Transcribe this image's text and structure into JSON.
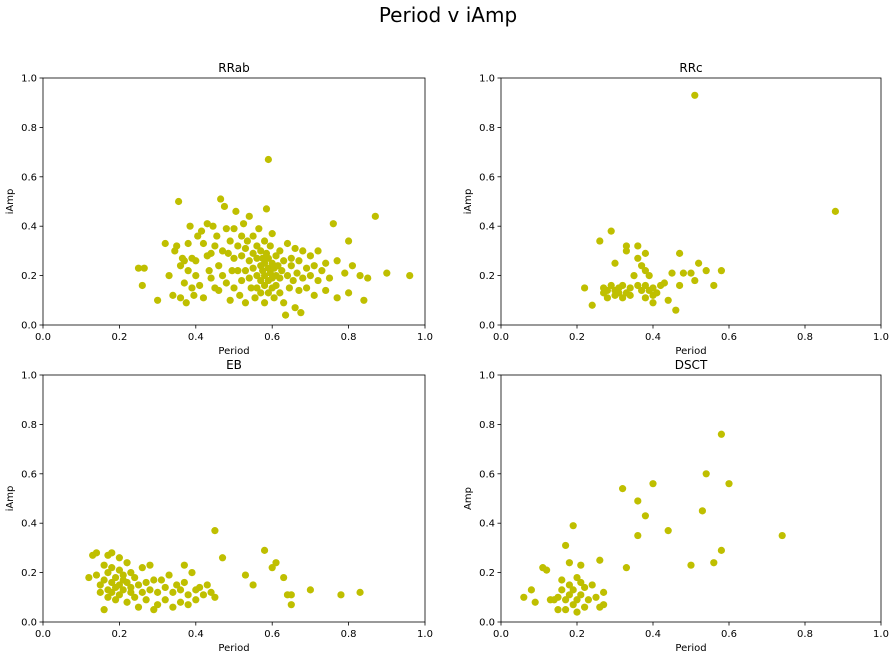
{
  "figure": {
    "suptitle": "Period v iAmp",
    "point_color": "#bfbf00"
  },
  "chart_data": [
    {
      "type": "scatter",
      "title": "RRab",
      "xlabel": "Period",
      "ylabel": "iAmp",
      "xlim": [
        0,
        1
      ],
      "ylim": [
        0,
        1
      ],
      "xticks": [
        "0.0",
        "0.2",
        "0.4",
        "0.6",
        "0.8",
        "1.0"
      ],
      "yticks": [
        "0.0",
        "0.2",
        "0.4",
        "0.6",
        "0.8",
        "1.0"
      ],
      "points": [
        [
          0.25,
          0.23
        ],
        [
          0.26,
          0.16
        ],
        [
          0.265,
          0.23
        ],
        [
          0.3,
          0.1
        ],
        [
          0.32,
          0.33
        ],
        [
          0.33,
          0.2
        ],
        [
          0.34,
          0.12
        ],
        [
          0.345,
          0.3
        ],
        [
          0.35,
          0.32
        ],
        [
          0.355,
          0.5
        ],
        [
          0.36,
          0.24
        ],
        [
          0.36,
          0.11
        ],
        [
          0.365,
          0.27
        ],
        [
          0.37,
          0.26
        ],
        [
          0.37,
          0.17
        ],
        [
          0.375,
          0.09
        ],
        [
          0.38,
          0.33
        ],
        [
          0.38,
          0.22
        ],
        [
          0.385,
          0.4
        ],
        [
          0.39,
          0.15
        ],
        [
          0.39,
          0.27
        ],
        [
          0.395,
          0.12
        ],
        [
          0.4,
          0.26
        ],
        [
          0.4,
          0.2
        ],
        [
          0.405,
          0.36
        ],
        [
          0.41,
          0.16
        ],
        [
          0.415,
          0.38
        ],
        [
          0.42,
          0.11
        ],
        [
          0.42,
          0.33
        ],
        [
          0.43,
          0.28
        ],
        [
          0.43,
          0.41
        ],
        [
          0.435,
          0.22
        ],
        [
          0.44,
          0.19
        ],
        [
          0.44,
          0.29
        ],
        [
          0.445,
          0.4
        ],
        [
          0.45,
          0.15
        ],
        [
          0.45,
          0.32
        ],
        [
          0.455,
          0.36
        ],
        [
          0.46,
          0.24
        ],
        [
          0.46,
          0.14
        ],
        [
          0.465,
          0.51
        ],
        [
          0.47,
          0.3
        ],
        [
          0.47,
          0.2
        ],
        [
          0.475,
          0.48
        ],
        [
          0.48,
          0.39
        ],
        [
          0.48,
          0.17
        ],
        [
          0.485,
          0.29
        ],
        [
          0.49,
          0.34
        ],
        [
          0.49,
          0.1
        ],
        [
          0.495,
          0.22
        ],
        [
          0.5,
          0.39
        ],
        [
          0.5,
          0.27
        ],
        [
          0.5,
          0.15
        ],
        [
          0.505,
          0.46
        ],
        [
          0.51,
          0.32
        ],
        [
          0.51,
          0.22
        ],
        [
          0.515,
          0.12
        ],
        [
          0.52,
          0.36
        ],
        [
          0.52,
          0.28
        ],
        [
          0.52,
          0.18
        ],
        [
          0.525,
          0.41
        ],
        [
          0.53,
          0.31
        ],
        [
          0.53,
          0.22
        ],
        [
          0.53,
          0.09
        ],
        [
          0.535,
          0.34
        ],
        [
          0.54,
          0.26
        ],
        [
          0.54,
          0.19
        ],
        [
          0.54,
          0.44
        ],
        [
          0.545,
          0.15
        ],
        [
          0.55,
          0.29
        ],
        [
          0.55,
          0.23
        ],
        [
          0.55,
          0.36
        ],
        [
          0.555,
          0.11
        ],
        [
          0.56,
          0.27
        ],
        [
          0.56,
          0.2
        ],
        [
          0.56,
          0.32
        ],
        [
          0.56,
          0.15
        ],
        [
          0.565,
          0.39
        ],
        [
          0.57,
          0.24
        ],
        [
          0.57,
          0.18
        ],
        [
          0.57,
          0.3
        ],
        [
          0.57,
          0.13
        ],
        [
          0.575,
          0.22
        ],
        [
          0.575,
          0.27
        ],
        [
          0.58,
          0.16
        ],
        [
          0.58,
          0.25
        ],
        [
          0.58,
          0.34
        ],
        [
          0.58,
          0.2
        ],
        [
          0.58,
          0.09
        ],
        [
          0.585,
          0.47
        ],
        [
          0.585,
          0.29
        ],
        [
          0.59,
          0.67
        ],
        [
          0.59,
          0.23
        ],
        [
          0.59,
          0.18
        ],
        [
          0.59,
          0.13
        ],
        [
          0.59,
          0.27
        ],
        [
          0.595,
          0.21
        ],
        [
          0.595,
          0.32
        ],
        [
          0.6,
          0.25
        ],
        [
          0.6,
          0.15
        ],
        [
          0.6,
          0.19
        ],
        [
          0.6,
          0.37
        ],
        [
          0.605,
          0.23
        ],
        [
          0.605,
          0.11
        ],
        [
          0.61,
          0.28
        ],
        [
          0.61,
          0.2
        ],
        [
          0.61,
          0.16
        ],
        [
          0.615,
          0.24
        ],
        [
          0.62,
          0.3
        ],
        [
          0.62,
          0.13
        ],
        [
          0.62,
          0.19
        ],
        [
          0.625,
          0.22
        ],
        [
          0.63,
          0.26
        ],
        [
          0.63,
          0.09
        ],
        [
          0.635,
          0.04
        ],
        [
          0.64,
          0.2
        ],
        [
          0.64,
          0.33
        ],
        [
          0.645,
          0.15
        ],
        [
          0.65,
          0.24
        ],
        [
          0.65,
          0.27
        ],
        [
          0.655,
          0.18
        ],
        [
          0.66,
          0.07
        ],
        [
          0.66,
          0.31
        ],
        [
          0.665,
          0.21
        ],
        [
          0.67,
          0.14
        ],
        [
          0.67,
          0.26
        ],
        [
          0.675,
          0.05
        ],
        [
          0.68,
          0.19
        ],
        [
          0.68,
          0.3
        ],
        [
          0.69,
          0.23
        ],
        [
          0.69,
          0.15
        ],
        [
          0.7,
          0.2
        ],
        [
          0.7,
          0.28
        ],
        [
          0.71,
          0.12
        ],
        [
          0.71,
          0.24
        ],
        [
          0.72,
          0.18
        ],
        [
          0.72,
          0.3
        ],
        [
          0.73,
          0.22
        ],
        [
          0.74,
          0.25
        ],
        [
          0.74,
          0.14
        ],
        [
          0.75,
          0.19
        ],
        [
          0.76,
          0.41
        ],
        [
          0.77,
          0.26
        ],
        [
          0.77,
          0.11
        ],
        [
          0.79,
          0.21
        ],
        [
          0.8,
          0.34
        ],
        [
          0.8,
          0.13
        ],
        [
          0.81,
          0.24
        ],
        [
          0.83,
          0.2
        ],
        [
          0.84,
          0.1
        ],
        [
          0.85,
          0.19
        ],
        [
          0.87,
          0.44
        ],
        [
          0.9,
          0.21
        ],
        [
          0.96,
          0.2
        ]
      ]
    },
    {
      "type": "scatter",
      "title": "RRc",
      "xlabel": "Period",
      "ylabel": "iAmp",
      "xlim": [
        0,
        1
      ],
      "ylim": [
        0,
        1
      ],
      "xticks": [
        "0.0",
        "0.2",
        "0.4",
        "0.6",
        "0.8",
        "1.0"
      ],
      "yticks": [
        "0.0",
        "0.2",
        "0.4",
        "0.6",
        "0.8",
        "1.0"
      ],
      "points": [
        [
          0.22,
          0.15
        ],
        [
          0.24,
          0.08
        ],
        [
          0.26,
          0.34
        ],
        [
          0.27,
          0.15
        ],
        [
          0.27,
          0.13
        ],
        [
          0.28,
          0.11
        ],
        [
          0.28,
          0.14
        ],
        [
          0.29,
          0.16
        ],
        [
          0.29,
          0.38
        ],
        [
          0.3,
          0.12
        ],
        [
          0.3,
          0.25
        ],
        [
          0.3,
          0.14
        ],
        [
          0.31,
          0.15
        ],
        [
          0.31,
          0.13
        ],
        [
          0.32,
          0.16
        ],
        [
          0.32,
          0.11
        ],
        [
          0.33,
          0.3
        ],
        [
          0.33,
          0.32
        ],
        [
          0.33,
          0.13
        ],
        [
          0.34,
          0.15
        ],
        [
          0.34,
          0.12
        ],
        [
          0.35,
          0.2
        ],
        [
          0.36,
          0.16
        ],
        [
          0.36,
          0.27
        ],
        [
          0.36,
          0.32
        ],
        [
          0.37,
          0.14
        ],
        [
          0.37,
          0.24
        ],
        [
          0.38,
          0.16
        ],
        [
          0.38,
          0.11
        ],
        [
          0.38,
          0.22
        ],
        [
          0.38,
          0.29
        ],
        [
          0.39,
          0.14
        ],
        [
          0.39,
          0.2
        ],
        [
          0.4,
          0.12
        ],
        [
          0.4,
          0.15
        ],
        [
          0.4,
          0.09
        ],
        [
          0.41,
          0.13
        ],
        [
          0.42,
          0.16
        ],
        [
          0.43,
          0.17
        ],
        [
          0.44,
          0.1
        ],
        [
          0.45,
          0.21
        ],
        [
          0.46,
          0.06
        ],
        [
          0.47,
          0.16
        ],
        [
          0.47,
          0.29
        ],
        [
          0.48,
          0.21
        ],
        [
          0.5,
          0.21
        ],
        [
          0.51,
          0.18
        ],
        [
          0.51,
          0.93
        ],
        [
          0.52,
          0.25
        ],
        [
          0.54,
          0.22
        ],
        [
          0.56,
          0.16
        ],
        [
          0.58,
          0.22
        ],
        [
          0.88,
          0.46
        ]
      ]
    },
    {
      "type": "scatter",
      "title": "EB",
      "xlabel": "Period",
      "ylabel": "iAmp",
      "xlim": [
        0,
        1
      ],
      "ylim": [
        0,
        1
      ],
      "xticks": [
        "0.0",
        "0.2",
        "0.4",
        "0.6",
        "0.8",
        "1.0"
      ],
      "yticks": [
        "0.0",
        "0.2",
        "0.4",
        "0.6",
        "0.8",
        "1.0"
      ],
      "points": [
        [
          0.12,
          0.18
        ],
        [
          0.13,
          0.27
        ],
        [
          0.14,
          0.28
        ],
        [
          0.14,
          0.19
        ],
        [
          0.15,
          0.15
        ],
        [
          0.15,
          0.12
        ],
        [
          0.16,
          0.23
        ],
        [
          0.16,
          0.17
        ],
        [
          0.16,
          0.05
        ],
        [
          0.17,
          0.13
        ],
        [
          0.17,
          0.27
        ],
        [
          0.17,
          0.2
        ],
        [
          0.17,
          0.1
        ],
        [
          0.18,
          0.16
        ],
        [
          0.18,
          0.22
        ],
        [
          0.18,
          0.12
        ],
        [
          0.18,
          0.28
        ],
        [
          0.19,
          0.18
        ],
        [
          0.19,
          0.09
        ],
        [
          0.19,
          0.14
        ],
        [
          0.2,
          0.21
        ],
        [
          0.2,
          0.15
        ],
        [
          0.2,
          0.26
        ],
        [
          0.2,
          0.11
        ],
        [
          0.21,
          0.17
        ],
        [
          0.21,
          0.13
        ],
        [
          0.21,
          0.19
        ],
        [
          0.22,
          0.08
        ],
        [
          0.22,
          0.24
        ],
        [
          0.22,
          0.16
        ],
        [
          0.23,
          0.12
        ],
        [
          0.23,
          0.2
        ],
        [
          0.23,
          0.14
        ],
        [
          0.24,
          0.18
        ],
        [
          0.24,
          0.1
        ],
        [
          0.25,
          0.15
        ],
        [
          0.25,
          0.06
        ],
        [
          0.26,
          0.12
        ],
        [
          0.26,
          0.22
        ],
        [
          0.27,
          0.16
        ],
        [
          0.27,
          0.09
        ],
        [
          0.28,
          0.23
        ],
        [
          0.28,
          0.13
        ],
        [
          0.29,
          0.05
        ],
        [
          0.29,
          0.17
        ],
        [
          0.3,
          0.07
        ],
        [
          0.3,
          0.12
        ],
        [
          0.31,
          0.17
        ],
        [
          0.32,
          0.09
        ],
        [
          0.32,
          0.14
        ],
        [
          0.33,
          0.19
        ],
        [
          0.34,
          0.06
        ],
        [
          0.34,
          0.12
        ],
        [
          0.35,
          0.15
        ],
        [
          0.36,
          0.08
        ],
        [
          0.36,
          0.13
        ],
        [
          0.37,
          0.23
        ],
        [
          0.37,
          0.16
        ],
        [
          0.38,
          0.11
        ],
        [
          0.38,
          0.07
        ],
        [
          0.39,
          0.2
        ],
        [
          0.4,
          0.09
        ],
        [
          0.4,
          0.13
        ],
        [
          0.41,
          0.14
        ],
        [
          0.42,
          0.11
        ],
        [
          0.43,
          0.15
        ],
        [
          0.44,
          0.12
        ],
        [
          0.45,
          0.37
        ],
        [
          0.45,
          0.1
        ],
        [
          0.47,
          0.26
        ],
        [
          0.53,
          0.19
        ],
        [
          0.55,
          0.15
        ],
        [
          0.58,
          0.29
        ],
        [
          0.6,
          0.22
        ],
        [
          0.61,
          0.24
        ],
        [
          0.63,
          0.18
        ],
        [
          0.64,
          0.11
        ],
        [
          0.65,
          0.07
        ],
        [
          0.65,
          0.11
        ],
        [
          0.7,
          0.13
        ],
        [
          0.78,
          0.11
        ],
        [
          0.83,
          0.12
        ]
      ]
    },
    {
      "type": "scatter",
      "title": "DSCT",
      "xlabel": "Period",
      "ylabel": "Amp",
      "xlim": [
        0,
        1
      ],
      "ylim": [
        0,
        1
      ],
      "xticks": [
        "0.0",
        "0.2",
        "0.4",
        "0.6",
        "0.8",
        "1.0"
      ],
      "yticks": [
        "0.0",
        "0.2",
        "0.4",
        "0.6",
        "0.8",
        "1.0"
      ],
      "points": [
        [
          0.06,
          0.1
        ],
        [
          0.08,
          0.13
        ],
        [
          0.09,
          0.08
        ],
        [
          0.11,
          0.22
        ],
        [
          0.12,
          0.21
        ],
        [
          0.13,
          0.09
        ],
        [
          0.14,
          0.09
        ],
        [
          0.15,
          0.05
        ],
        [
          0.15,
          0.1
        ],
        [
          0.16,
          0.17
        ],
        [
          0.16,
          0.13
        ],
        [
          0.17,
          0.31
        ],
        [
          0.17,
          0.09
        ],
        [
          0.17,
          0.05
        ],
        [
          0.18,
          0.24
        ],
        [
          0.18,
          0.15
        ],
        [
          0.18,
          0.11
        ],
        [
          0.19,
          0.39
        ],
        [
          0.19,
          0.07
        ],
        [
          0.19,
          0.13
        ],
        [
          0.2,
          0.18
        ],
        [
          0.2,
          0.04
        ],
        [
          0.2,
          0.09
        ],
        [
          0.21,
          0.23
        ],
        [
          0.21,
          0.16
        ],
        [
          0.21,
          0.11
        ],
        [
          0.22,
          0.06
        ],
        [
          0.22,
          0.14
        ],
        [
          0.23,
          0.09
        ],
        [
          0.24,
          0.15
        ],
        [
          0.25,
          0.1
        ],
        [
          0.26,
          0.06
        ],
        [
          0.26,
          0.25
        ],
        [
          0.27,
          0.07
        ],
        [
          0.27,
          0.12
        ],
        [
          0.32,
          0.54
        ],
        [
          0.33,
          0.22
        ],
        [
          0.36,
          0.49
        ],
        [
          0.36,
          0.35
        ],
        [
          0.38,
          0.43
        ],
        [
          0.4,
          0.56
        ],
        [
          0.44,
          0.37
        ],
        [
          0.5,
          0.23
        ],
        [
          0.53,
          0.45
        ],
        [
          0.54,
          0.6
        ],
        [
          0.56,
          0.24
        ],
        [
          0.58,
          0.29
        ],
        [
          0.58,
          0.76
        ],
        [
          0.6,
          0.56
        ],
        [
          0.74,
          0.35
        ]
      ]
    }
  ]
}
